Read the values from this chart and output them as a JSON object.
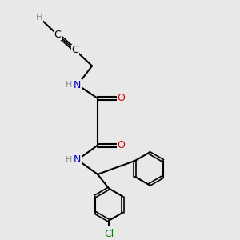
{
  "bg_color": "#e8e8e8",
  "C": "#000000",
  "H": "#909090",
  "N": "#0000cc",
  "O": "#dd0000",
  "Cl": "#008800",
  "lw": 1.5,
  "fs": 9,
  "fs_small": 8
}
